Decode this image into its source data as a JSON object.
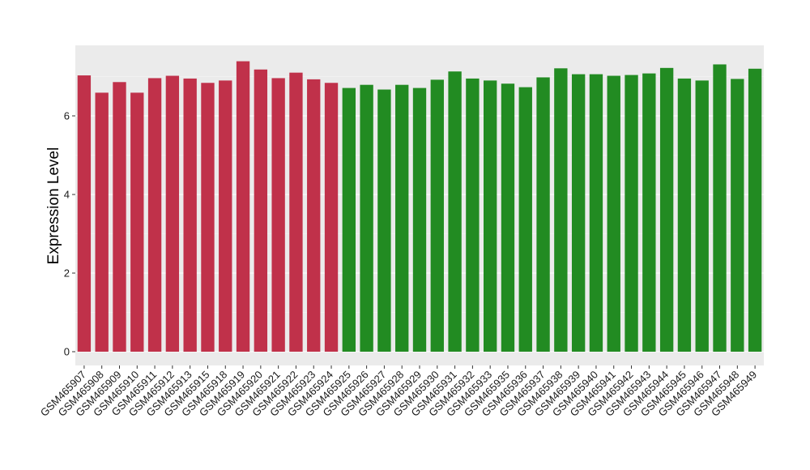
{
  "chart_data": {
    "type": "bar",
    "title": "",
    "xlabel": "",
    "ylabel": "Expression Level",
    "ylim": [
      0,
      7.75
    ],
    "yticks": [
      0,
      2,
      4,
      6
    ],
    "ytick_labels": [
      "0",
      "2",
      "4",
      "6"
    ],
    "grid": true,
    "legend": "none",
    "colors": {
      "group1": "#C0314A",
      "group2": "#228B22",
      "panel": "#EBEBEB",
      "gridline": "#FFFFFF"
    },
    "categories": [
      "GSM465907",
      "GSM465908",
      "GSM465909",
      "GSM465910",
      "GSM465911",
      "GSM465912",
      "GSM465913",
      "GSM465915",
      "GSM465918",
      "GSM465919",
      "GSM465920",
      "GSM465921",
      "GSM465922",
      "GSM465923",
      "GSM465924",
      "GSM465925",
      "GSM465926",
      "GSM465927",
      "GSM465928",
      "GSM465929",
      "GSM465930",
      "GSM465931",
      "GSM465932",
      "GSM465933",
      "GSM465935",
      "GSM465936",
      "GSM465937",
      "GSM465938",
      "GSM465939",
      "GSM465940",
      "GSM465941",
      "GSM465942",
      "GSM465943",
      "GSM465944",
      "GSM465945",
      "GSM465946",
      "GSM465947",
      "GSM465948",
      "GSM465949"
    ],
    "values": [
      7.03,
      6.59,
      6.86,
      6.59,
      6.96,
      7.02,
      6.95,
      6.84,
      6.9,
      7.39,
      7.18,
      6.96,
      7.1,
      6.93,
      6.84,
      6.71,
      6.79,
      6.67,
      6.79,
      6.71,
      6.92,
      7.13,
      6.95,
      6.9,
      6.82,
      6.73,
      6.98,
      7.21,
      7.06,
      7.06,
      7.02,
      7.04,
      7.08,
      7.22,
      6.95,
      6.9,
      7.31,
      6.94,
      7.2
    ],
    "groups": [
      "group1",
      "group1",
      "group1",
      "group1",
      "group1",
      "group1",
      "group1",
      "group1",
      "group1",
      "group1",
      "group1",
      "group1",
      "group1",
      "group1",
      "group1",
      "group2",
      "group2",
      "group2",
      "group2",
      "group2",
      "group2",
      "group2",
      "group2",
      "group2",
      "group2",
      "group2",
      "group2",
      "group2",
      "group2",
      "group2",
      "group2",
      "group2",
      "group2",
      "group2",
      "group2",
      "group2",
      "group2",
      "group2",
      "group2"
    ]
  }
}
